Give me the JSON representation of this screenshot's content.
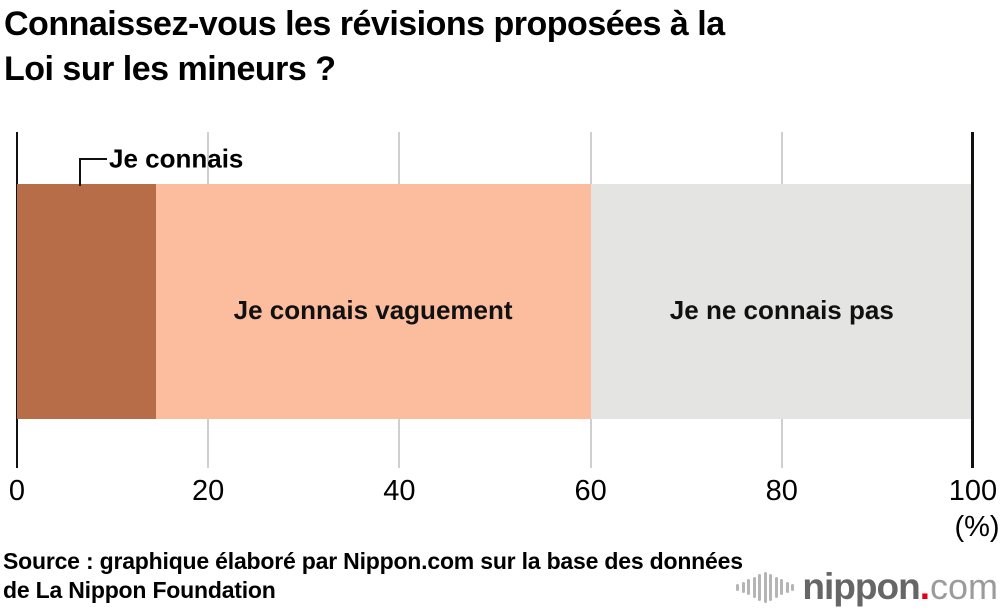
{
  "title": {
    "line1": "Connaissez-vous les révisions proposées à la",
    "line2": "Loi sur les mineurs ?"
  },
  "chart_data": {
    "type": "bar",
    "orientation": "horizontal-stacked",
    "series": [
      {
        "name": "Je connais",
        "value": 14.5,
        "color": "#b76d48",
        "label_style": "callout"
      },
      {
        "name": "Je connais vaguement",
        "value": 45.5,
        "color": "#fcbc9e",
        "label_style": "inside"
      },
      {
        "name": "Je ne connais pas",
        "value": 40.0,
        "color": "#e4e4e3",
        "label_style": "inside"
      }
    ],
    "x_ticks": [
      0,
      20,
      40,
      60,
      80,
      100
    ],
    "xlim": [
      0,
      100
    ],
    "x_unit": "(%)",
    "grid": true,
    "legend_position": "none"
  },
  "source": {
    "line1": "Source : graphique élaboré par Nippon.com sur la base des données",
    "line2": "de La Nippon Foundation"
  },
  "logo": {
    "name": "nippon",
    "dot": ".",
    "tld": "com"
  }
}
